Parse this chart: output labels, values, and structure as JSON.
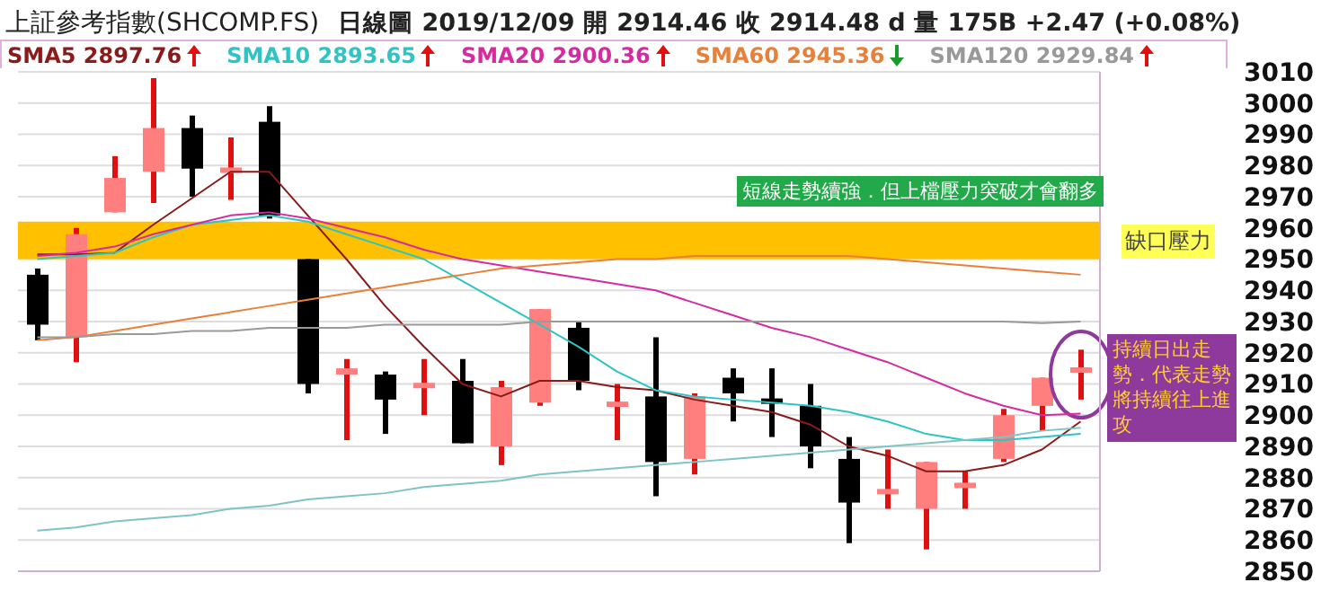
{
  "chart_data": {
    "type": "candlestick",
    "title": "上証參考指數(SHCOMP.FS)",
    "subtitle": "日線圖 2019/12/09 開 2914.46 收 2914.48 d 量 175B +2.47 (+0.08%)",
    "categories": [
      null,
      null,
      null,
      null,
      null,
      null,
      null,
      null,
      null,
      null,
      null,
      null,
      null,
      null,
      null,
      null,
      null,
      null,
      null,
      null,
      null,
      null,
      null,
      null,
      null,
      null,
      null,
      null
    ],
    "ohlc": [
      [
        2945,
        2947,
        2924,
        2929
      ],
      [
        2925,
        2960,
        2917,
        2958
      ],
      [
        2965,
        2983,
        2965,
        2976
      ],
      [
        2978,
        3008,
        2968,
        2992
      ],
      [
        2992,
        2996,
        2970,
        2979
      ],
      [
        2978,
        2989,
        2969,
        2979
      ],
      [
        2994,
        2999,
        2963,
        2964
      ],
      [
        2950,
        2950,
        2907,
        2910
      ],
      [
        2913,
        2918,
        2892,
        2915
      ],
      [
        2913,
        2914,
        2894,
        2905
      ],
      [
        2909,
        2918,
        2900,
        2910
      ],
      [
        2911,
        2918,
        2891,
        2891
      ],
      [
        2890,
        2911,
        2884,
        2909
      ],
      [
        2904,
        2934,
        2903,
        2934
      ],
      [
        2928,
        2930,
        2908,
        2911
      ],
      [
        2903,
        2910,
        2892,
        2904
      ],
      [
        2906,
        2925,
        2874,
        2885
      ],
      [
        2886,
        2907,
        2881,
        2906
      ],
      [
        2912,
        2915,
        2898,
        2907
      ],
      [
        2905,
        2915,
        2893,
        2904
      ],
      [
        2903,
        2910,
        2883,
        2890
      ],
      [
        2886,
        2893,
        2859,
        2872
      ],
      [
        2875,
        2889,
        2870,
        2876
      ],
      [
        2870,
        2885,
        2857,
        2885
      ],
      [
        2877,
        2882,
        2870,
        2878
      ],
      [
        2886,
        2902,
        2885,
        2900
      ],
      [
        2903,
        2912,
        2895,
        2912
      ],
      [
        2914.46,
        2921,
        2905,
        2914.48
      ]
    ],
    "series": [
      {
        "type": "line",
        "name": "SMA5 2897.76",
        "color": "#8b1a1a",
        "values": [
          2951.5,
          2951.5,
          2952,
          2961,
          2969.5,
          2978,
          2978,
          2964,
          2950,
          2935,
          2922,
          2910,
          2906,
          2911,
          2911,
          2909,
          2908,
          2905,
          2903,
          2901,
          2897,
          2890,
          2887,
          2882,
          2882,
          2884,
          2889,
          2898
        ]
      },
      {
        "type": "line",
        "name": "SMA10 2893.65",
        "color": "#2ec4c4",
        "values": [
          2950,
          2951,
          2952,
          2957,
          2961,
          2962.5,
          2964,
          2962,
          2958,
          2954,
          2950,
          2943,
          2936,
          2929,
          2922,
          2914,
          2908,
          2906,
          2905,
          2904,
          2903,
          2901,
          2898,
          2894,
          2892,
          2892,
          2893,
          2894
        ]
      },
      {
        "type": "line",
        "name": "SMA20 2900.36",
        "color": "#d62aa0",
        "values": [
          2951,
          2952,
          2954,
          2958,
          2961,
          2964,
          2965,
          2963,
          2960,
          2957,
          2953,
          2950,
          2948,
          2946,
          2944,
          2942,
          2940,
          2936,
          2932,
          2928,
          2925,
          2921,
          2917,
          2912,
          2907,
          2903,
          2900,
          2900.5
        ]
      },
      {
        "type": "line",
        "name": "SMA60 2945.36",
        "color": "#e8803a",
        "values": [
          2924,
          2925,
          2927,
          2929,
          2931,
          2933,
          2935,
          2937,
          2939,
          2941,
          2943,
          2945,
          2947,
          2948,
          2949,
          2950,
          2950,
          2951,
          2951,
          2951,
          2951,
          2951,
          2950,
          2949,
          2948,
          2947,
          2946,
          2945
        ]
      },
      {
        "type": "line",
        "name": "SMA120 2929.84",
        "color": "#999999",
        "values": [
          2925,
          2925,
          2926,
          2926,
          2927,
          2927,
          2928,
          2928,
          2928,
          2929,
          2929,
          2929,
          2929,
          2930,
          2930,
          2930,
          2930,
          2930,
          2930,
          2930,
          2930,
          2930,
          2930,
          2930,
          2930,
          2930,
          2929.5,
          2930
        ]
      },
      {
        "type": "line",
        "color": "#7fc4c4",
        "values": [
          2863,
          2864,
          2866,
          2867,
          2868,
          2870,
          2871,
          2873,
          2874,
          2875,
          2877,
          2878,
          2879,
          2881,
          2882,
          2883,
          2884,
          2885,
          2886,
          2887,
          2888,
          2889,
          2890,
          2891,
          2892,
          2893,
          2895,
          2896
        ]
      }
    ],
    "ylim": [
      2850,
      3010
    ],
    "yticks": [
      2850,
      2860,
      2870,
      2880,
      2890,
      2900,
      2910,
      2920,
      2930,
      2940,
      2950,
      2960,
      2970,
      2980,
      2990,
      3000,
      3010
    ],
    "grid": "y",
    "legend": "top",
    "tick_labels": "y",
    "bands": [
      {
        "axis": "y",
        "from": 2950,
        "to": 2962,
        "label": "缺口壓力",
        "color": "#ffc000"
      }
    ],
    "annotations": [
      "短線走勢續強．但上檔壓力突破才會翻多",
      "持續日出走勢．代表走勢將持續往上進攻"
    ]
  }
}
